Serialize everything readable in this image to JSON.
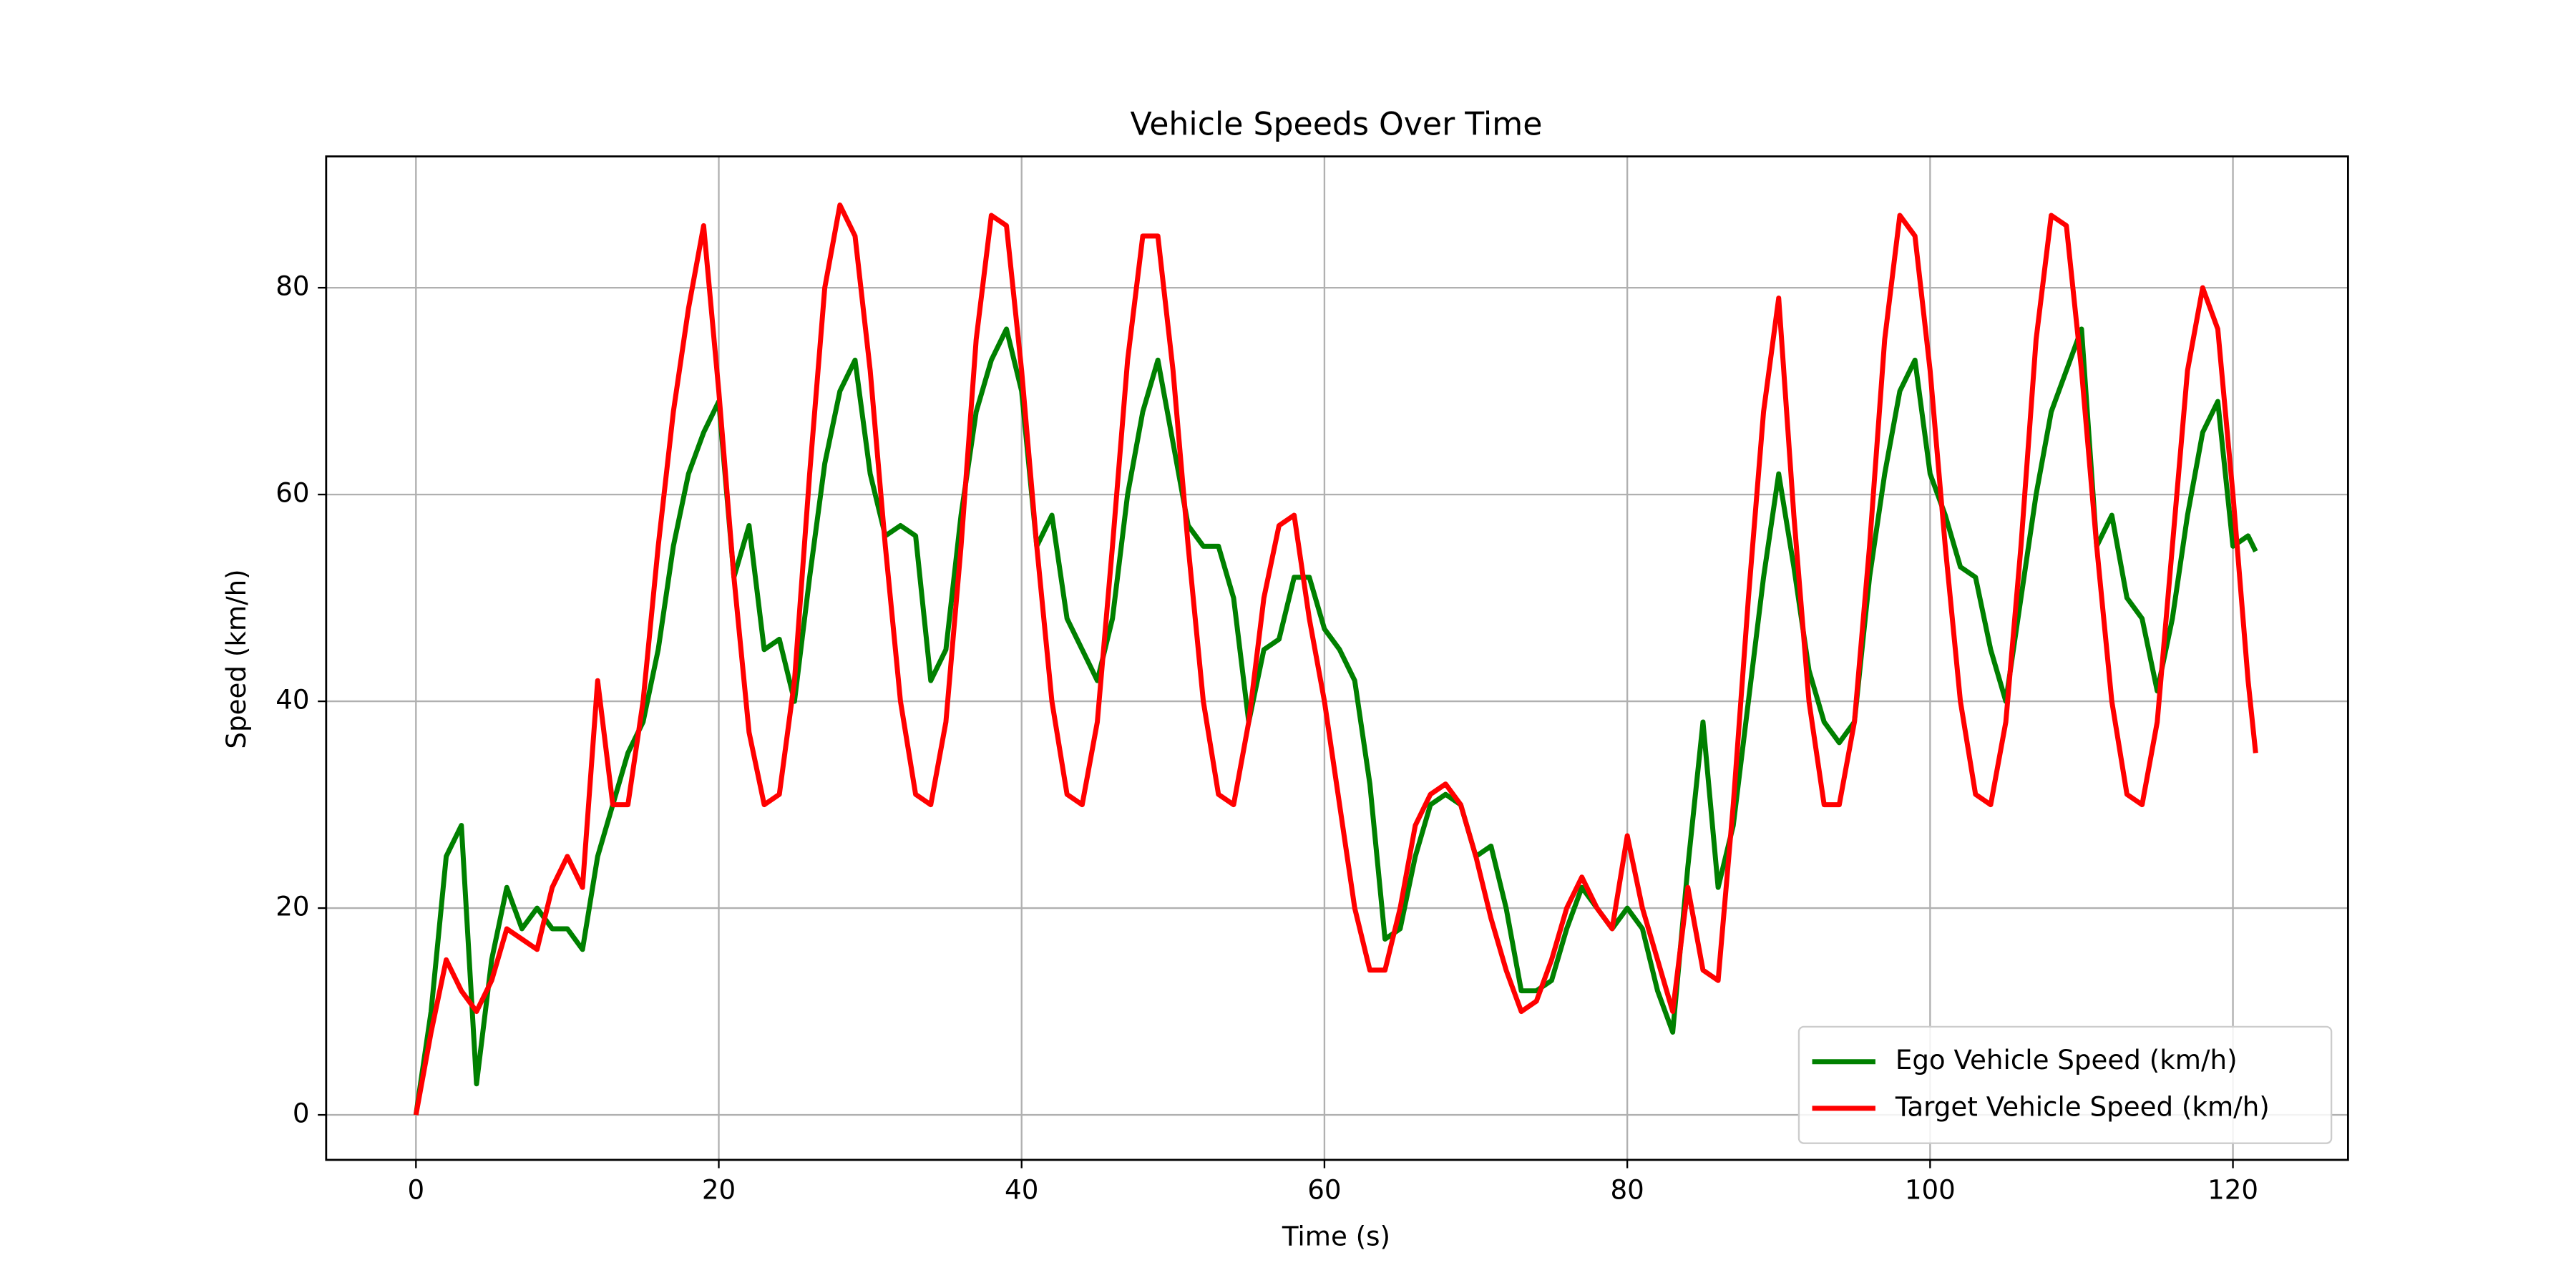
{
  "chart_data": {
    "type": "line",
    "title": "Vehicle Speeds Over Time",
    "x_label": "Time (s)",
    "y_label": "Speed (km/h)",
    "x": [
      0,
      1,
      2,
      3,
      4,
      5,
      6,
      7,
      8,
      9,
      10,
      11,
      12,
      13,
      14,
      15,
      16,
      17,
      18,
      19,
      20,
      21,
      22,
      23,
      24,
      25,
      26,
      27,
      28,
      29,
      30,
      31,
      32,
      33,
      34,
      35,
      36,
      37,
      38,
      39,
      40,
      41,
      42,
      43,
      44,
      45,
      46,
      47,
      48,
      49,
      50,
      51,
      52,
      53,
      54,
      55,
      56,
      57,
      58,
      59,
      60,
      61,
      62,
      63,
      64,
      65,
      66,
      67,
      68,
      69,
      70,
      71,
      72,
      73,
      74,
      75,
      76,
      77,
      78,
      79,
      80,
      81,
      82,
      83,
      84,
      85,
      86,
      87,
      88,
      89,
      90,
      91,
      92,
      93,
      94,
      95,
      96,
      97,
      98,
      99,
      100,
      101,
      102,
      103,
      104,
      105,
      106,
      107,
      108,
      109,
      110,
      111,
      112,
      113,
      114,
      115,
      116,
      117,
      118,
      119,
      120,
      121,
      121.5
    ],
    "series": [
      {
        "name": "Ego Vehicle Speed (km/h)",
        "color": "#008000",
        "values": [
          0,
          10,
          25,
          28,
          3,
          15,
          22,
          18,
          20,
          18,
          18,
          16,
          25,
          30,
          35,
          38,
          45,
          55,
          62,
          66,
          69,
          52,
          57,
          45,
          46,
          40,
          52,
          63,
          70,
          73,
          62,
          56,
          57,
          56,
          42,
          45,
          58,
          68,
          73,
          76,
          70,
          55,
          58,
          48,
          45,
          42,
          48,
          60,
          68,
          73,
          65,
          57,
          55,
          55,
          50,
          38,
          45,
          46,
          52,
          52,
          47,
          45,
          42,
          32,
          17,
          18,
          25,
          30,
          31,
          30,
          25,
          26,
          20,
          12,
          12,
          13,
          18,
          22,
          20,
          18,
          20,
          18,
          12,
          8,
          24,
          38,
          22,
          28,
          40,
          52,
          62,
          53,
          43,
          38,
          36,
          38,
          52,
          62,
          70,
          73,
          62,
          58,
          53,
          52,
          45,
          40,
          50,
          60,
          68,
          72,
          76,
          55,
          58,
          50,
          48,
          41,
          48,
          58,
          66,
          69,
          55,
          56,
          54.5
        ]
      },
      {
        "name": "Target Vehicle Speed (km/h)",
        "color": "#ff0000",
        "values": [
          0,
          8,
          15,
          12,
          10,
          13,
          18,
          17,
          16,
          22,
          25,
          22,
          42,
          30,
          30,
          40,
          55,
          68,
          78,
          86,
          70,
          52,
          37,
          30,
          31,
          42,
          62,
          80,
          88,
          85,
          72,
          55,
          40,
          31,
          30,
          38,
          55,
          75,
          87,
          86,
          72,
          55,
          40,
          31,
          30,
          38,
          55,
          73,
          85,
          85,
          72,
          55,
          40,
          31,
          30,
          38,
          50,
          57,
          58,
          48,
          40,
          30,
          20,
          14,
          14,
          20,
          28,
          31,
          32,
          30,
          25,
          19,
          14,
          10,
          11,
          15,
          20,
          23,
          20,
          18,
          27,
          20,
          15,
          10,
          22,
          14,
          13,
          30,
          50,
          68,
          79,
          58,
          40,
          30,
          30,
          38,
          55,
          75,
          87,
          85,
          72,
          55,
          40,
          31,
          30,
          38,
          55,
          75,
          87,
          86,
          72,
          55,
          40,
          31,
          30,
          38,
          55,
          72,
          80,
          76,
          60,
          42,
          35
        ]
      }
    ],
    "xlim": [
      -5.93,
      127.6
    ],
    "ylim": [
      -4.35,
      92.7
    ],
    "xticks": [
      0,
      20,
      40,
      60,
      80,
      100,
      120
    ],
    "yticks": [
      0,
      20,
      40,
      60,
      80
    ],
    "grid": true,
    "legend": "lower right"
  }
}
